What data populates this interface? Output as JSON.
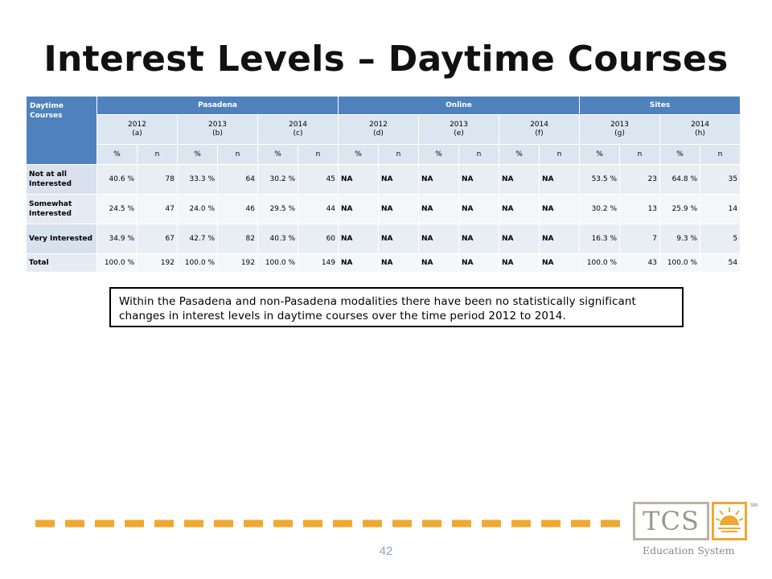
{
  "slide": {
    "title": "Interest Levels – Daytime Courses",
    "page_number": "42"
  },
  "table": {
    "corner": "Daytime Courses",
    "groups": [
      "Pasadena",
      "Online",
      "Sites"
    ],
    "years": [
      {
        "year": "2012",
        "tag": "(a)"
      },
      {
        "year": "2013",
        "tag": "(b)"
      },
      {
        "year": "2014",
        "tag": "(c)"
      },
      {
        "year": "2012",
        "tag": "(d)"
      },
      {
        "year": "2013",
        "tag": "(e)"
      },
      {
        "year": "2014",
        "tag": "(f)"
      },
      {
        "year": "2013",
        "tag": "(g)"
      },
      {
        "year": "2014",
        "tag": "(h)"
      }
    ],
    "sub": [
      "%",
      "n"
    ],
    "rows": [
      {
        "label": "Not at all Interested",
        "cells": [
          "40.6 %",
          "78",
          "33.3 %",
          "64",
          "30.2 %",
          "45",
          "NA",
          "NA",
          "NA",
          "NA",
          "NA",
          "NA",
          "53.5 %",
          "23",
          "64.8 %",
          "35"
        ]
      },
      {
        "label": "Somewhat Interested",
        "cells": [
          "24.5 %",
          "47",
          "24.0 %",
          "46",
          "29.5 %",
          "44",
          "NA",
          "NA",
          "NA",
          "NA",
          "NA",
          "NA",
          "30.2 %",
          "13",
          "25.9 %",
          "14"
        ]
      },
      {
        "label": "Very Interested",
        "cells": [
          "34.9 %",
          "67",
          "42.7 %",
          "82",
          "40.3 %",
          "60",
          "NA",
          "NA",
          "NA",
          "NA",
          "NA",
          "NA",
          "16.3 %",
          "7",
          "9.3 %",
          "5"
        ]
      },
      {
        "label": "Total",
        "cells": [
          "100.0 %",
          "192",
          "100.0 %",
          "192",
          "100.0 %",
          "149",
          "NA",
          "NA",
          "NA",
          "NA",
          "NA",
          "NA",
          "100.0 %",
          "43",
          "100.0 %",
          "54"
        ]
      }
    ]
  },
  "note": "Within the Pasadena and non-Pasadena modalities there have been no statistically significant changes in interest levels in daytime courses over the time period 2012 to 2014.",
  "logo": {
    "mark": "TCS",
    "sm": "SM",
    "subtitle": "Education System"
  },
  "colors": {
    "header": "#4f81bd",
    "subheader": "#dce6f1",
    "dash": "#f0a830"
  }
}
